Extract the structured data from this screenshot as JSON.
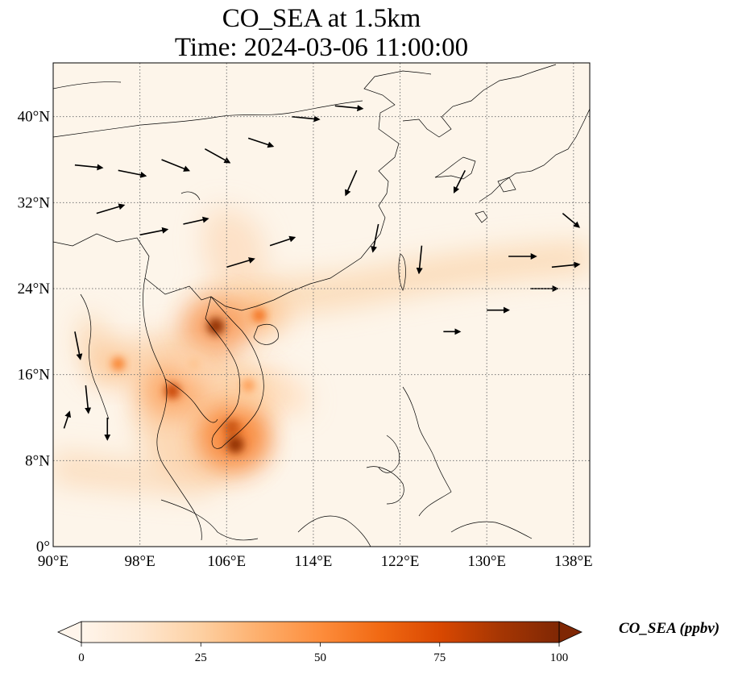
{
  "title": {
    "line1": "CO_SEA at 1.5km",
    "line2": "Time: 2024-03-06 11:00:00"
  },
  "map": {
    "lon_range": [
      90,
      139.5
    ],
    "lat_range": [
      0,
      45
    ],
    "lon_ticks": [
      {
        "value": 90,
        "label": "90°E"
      },
      {
        "value": 98,
        "label": "98°E"
      },
      {
        "value": 106,
        "label": "106°E"
      },
      {
        "value": 114,
        "label": "114°E"
      },
      {
        "value": 122,
        "label": "122°E"
      },
      {
        "value": 130,
        "label": "130°E"
      },
      {
        "value": 138,
        "label": "138°E"
      }
    ],
    "lat_ticks": [
      {
        "value": 0,
        "label": "0°"
      },
      {
        "value": 8,
        "label": "8°N"
      },
      {
        "value": 16,
        "label": "16°N"
      },
      {
        "value": 24,
        "label": "24°N"
      },
      {
        "value": 32,
        "label": "32°N"
      },
      {
        "value": 40,
        "label": "40°N"
      }
    ],
    "gridlines": true,
    "background_color": "#fdf5ea"
  },
  "colorbar": {
    "label": "CO_SEA (ppbv)",
    "min": 0,
    "max": 100,
    "ticks": [
      {
        "value": 0,
        "label": "0"
      },
      {
        "value": 25,
        "label": "25"
      },
      {
        "value": 50,
        "label": "50"
      },
      {
        "value": 75,
        "label": "75"
      },
      {
        "value": 100,
        "label": "100"
      }
    ],
    "extend": "both",
    "colormap": [
      "#fff5eb",
      "#fee6ce",
      "#fdd0a2",
      "#fdae6b",
      "#fd8d3c",
      "#f16913",
      "#d94801",
      "#a63603",
      "#7f2704"
    ]
  },
  "co_plumes": [
    {
      "lon": 109,
      "lat": 21.5,
      "value": 60
    },
    {
      "lon": 105,
      "lat": 20.5,
      "value": 95
    },
    {
      "lon": 106.5,
      "lat": 11,
      "value": 90
    },
    {
      "lon": 106.8,
      "lat": 9.5,
      "value": 95
    },
    {
      "lon": 101,
      "lat": 14.5,
      "value": 80
    },
    {
      "lon": 96,
      "lat": 17,
      "value": 55
    },
    {
      "lon": 108,
      "lat": 15,
      "value": 45
    },
    {
      "lon": 103,
      "lat": 17,
      "value": 30
    }
  ],
  "wind_vectors": [
    {
      "lon": 92,
      "lat": 35.5,
      "u": 1,
      "v": -0.1
    },
    {
      "lon": 96,
      "lat": 35,
      "u": 1,
      "v": -0.2
    },
    {
      "lon": 100,
      "lat": 36,
      "u": 1,
      "v": -0.4
    },
    {
      "lon": 104,
      "lat": 37,
      "u": 0.9,
      "v": -0.5
    },
    {
      "lon": 108,
      "lat": 38,
      "u": 0.9,
      "v": -0.3
    },
    {
      "lon": 112,
      "lat": 40,
      "u": 1,
      "v": -0.1
    },
    {
      "lon": 116,
      "lat": 41,
      "u": 1,
      "v": -0.1
    },
    {
      "lon": 102,
      "lat": 30,
      "u": 0.9,
      "v": 0.2
    },
    {
      "lon": 94,
      "lat": 31,
      "u": 1,
      "v": 0.3
    },
    {
      "lon": 98,
      "lat": 29,
      "u": 1,
      "v": 0.2
    },
    {
      "lon": 106,
      "lat": 26,
      "u": 1,
      "v": 0.3
    },
    {
      "lon": 110,
      "lat": 28,
      "u": 0.9,
      "v": 0.3
    },
    {
      "lon": 120,
      "lat": 30,
      "u": -0.2,
      "v": -1
    },
    {
      "lon": 124,
      "lat": 28,
      "u": -0.1,
      "v": -1
    },
    {
      "lon": 128,
      "lat": 35,
      "u": -0.4,
      "v": -0.8
    },
    {
      "lon": 132,
      "lat": 27,
      "u": 1,
      "v": 0
    },
    {
      "lon": 136,
      "lat": 26,
      "u": 1,
      "v": 0.1
    },
    {
      "lon": 134,
      "lat": 24,
      "u": 1,
      "v": 0
    },
    {
      "lon": 130,
      "lat": 22,
      "u": 0.8,
      "v": 0
    },
    {
      "lon": 126,
      "lat": 20,
      "u": 0.6,
      "v": 0
    },
    {
      "lon": 92,
      "lat": 20,
      "u": 0.2,
      "v": -1
    },
    {
      "lon": 93,
      "lat": 15,
      "u": 0.1,
      "v": -1
    },
    {
      "lon": 91,
      "lat": 11,
      "u": 0.2,
      "v": 0.6
    },
    {
      "lon": 95,
      "lat": 12,
      "u": 0,
      "v": -0.8
    },
    {
      "lon": 118,
      "lat": 35,
      "u": -0.4,
      "v": -0.9
    },
    {
      "lon": 137,
      "lat": 31,
      "u": 0.6,
      "v": -0.5
    }
  ]
}
